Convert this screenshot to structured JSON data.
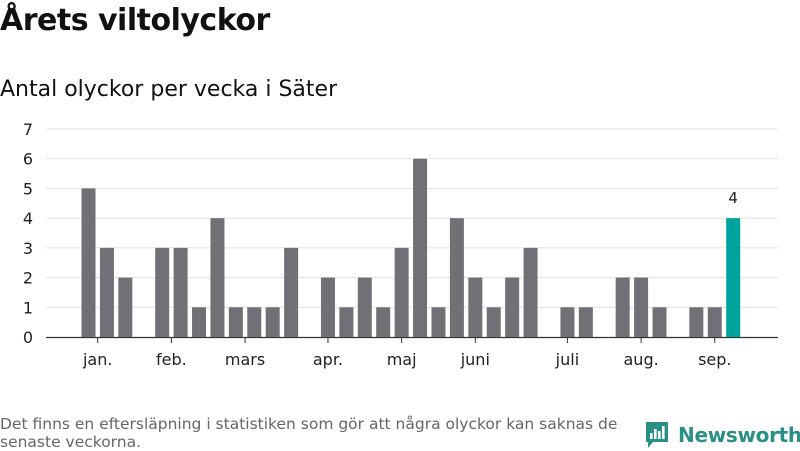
{
  "title": "Årets viltolyckor",
  "subtitle": "Antal olyckor per vecka i Säter",
  "footnote": "Det finns en eftersläpning i statistiken som gör att några olyckor kan saknas de senaste veckorna.",
  "brand": {
    "name": "Newsworthy"
  },
  "colors": {
    "bar": "#727076",
    "highlight": "#00a39a",
    "grid": "#e0e0e0",
    "axis": "#333333",
    "brand": "#2a8f87"
  },
  "chart_data": {
    "type": "bar",
    "title": "Årets viltolyckor",
    "subtitle": "Antal olyckor per vecka i Säter",
    "xlabel": "",
    "ylabel": "",
    "ylim": [
      0,
      7
    ],
    "yticks": [
      0,
      1,
      2,
      3,
      4,
      5,
      6,
      7
    ],
    "grid": true,
    "weeks": [
      1,
      2,
      3,
      4,
      5,
      6,
      7,
      8,
      9,
      10,
      11,
      12,
      13,
      14,
      15,
      16,
      17,
      18,
      19,
      20,
      21,
      22,
      23,
      24,
      25,
      26,
      27,
      28,
      29,
      30,
      31,
      32,
      33,
      34,
      35,
      36
    ],
    "values": [
      5,
      3,
      2,
      0,
      3,
      3,
      1,
      4,
      1,
      1,
      1,
      3,
      0,
      2,
      1,
      2,
      1,
      3,
      6,
      1,
      4,
      2,
      1,
      2,
      3,
      0,
      1,
      1,
      0,
      2,
      2,
      1,
      0,
      1,
      1,
      4
    ],
    "highlight_index": 35,
    "highlight_label": "4",
    "month_labels": [
      {
        "label": "jan.",
        "week": 1.5
      },
      {
        "label": "feb.",
        "week": 5.5
      },
      {
        "label": "mars",
        "week": 9.5
      },
      {
        "label": "apr.",
        "week": 14
      },
      {
        "label": "maj",
        "week": 18
      },
      {
        "label": "juni",
        "week": 22
      },
      {
        "label": "juli",
        "week": 27
      },
      {
        "label": "aug.",
        "week": 31
      },
      {
        "label": "sep.",
        "week": 35
      }
    ]
  }
}
